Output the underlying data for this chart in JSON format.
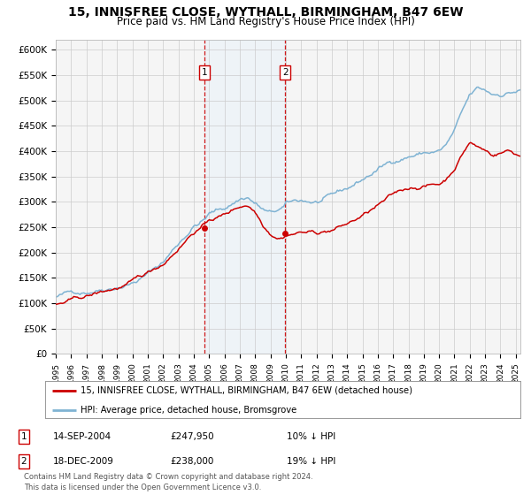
{
  "title": "15, INNISFREE CLOSE, WYTHALL, BIRMINGHAM, B47 6EW",
  "subtitle": "Price paid vs. HM Land Registry's House Price Index (HPI)",
  "title_fontsize": 10,
  "subtitle_fontsize": 8.5,
  "background_color": "#ffffff",
  "plot_bg_color": "#f5f5f5",
  "grid_color": "#cccccc",
  "ylim": [
    0,
    620000
  ],
  "yticks": [
    0,
    50000,
    100000,
    150000,
    200000,
    250000,
    300000,
    350000,
    400000,
    450000,
    500000,
    550000,
    600000
  ],
  "ytick_labels": [
    "£0",
    "£50K",
    "£100K",
    "£150K",
    "£200K",
    "£250K",
    "£300K",
    "£350K",
    "£400K",
    "£450K",
    "£500K",
    "£550K",
    "£600K"
  ],
  "sale1_x": 2004.71,
  "sale1_price": 247950,
  "sale2_x": 2009.96,
  "sale2_price": 238000,
  "sale1_date_str": "14-SEP-2004",
  "sale1_price_str": "£247,950",
  "sale1_hpi_str": "10% ↓ HPI",
  "sale2_date_str": "18-DEC-2009",
  "sale2_price_str": "£238,000",
  "sale2_hpi_str": "19% ↓ HPI",
  "house_color": "#cc0000",
  "hpi_color": "#7fb3d3",
  "legend_house_label": "15, INNISFREE CLOSE, WYTHALL, BIRMINGHAM, B47 6EW (detached house)",
  "legend_hpi_label": "HPI: Average price, detached house, Bromsgrove",
  "footer_text": "Contains HM Land Registry data © Crown copyright and database right 2024.\nThis data is licensed under the Open Government Licence v3.0.",
  "shade_color": "#ddeeff",
  "xlim_left": 1995.0,
  "xlim_right": 2025.3
}
